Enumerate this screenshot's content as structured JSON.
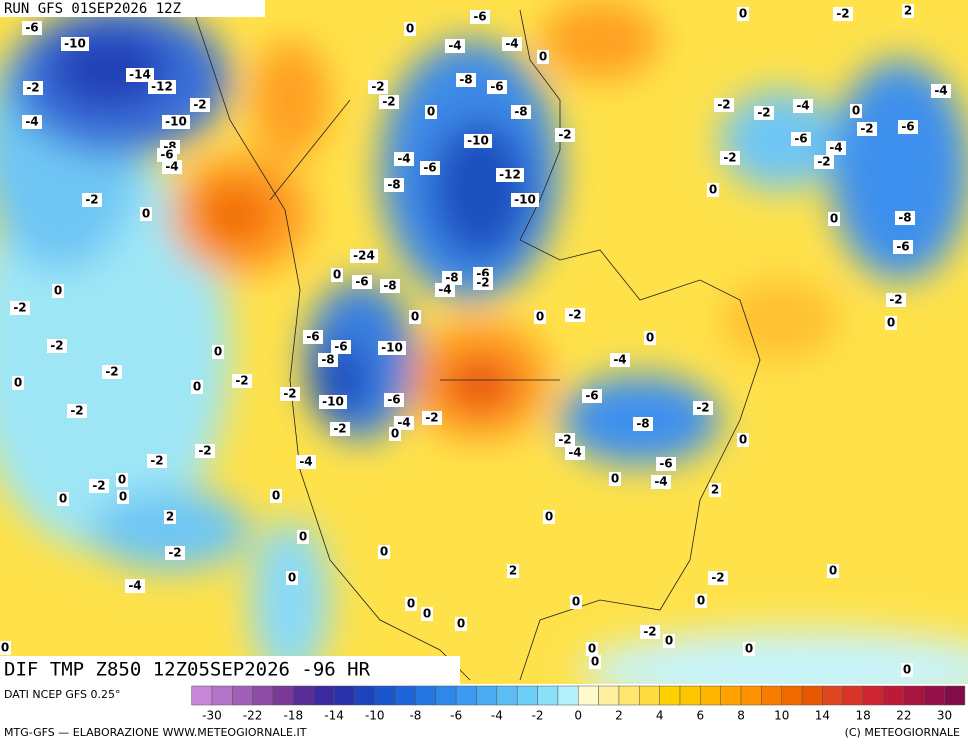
{
  "header": {
    "title": "RUN GFS 01SEP2026 12Z"
  },
  "map": {
    "title": "DIF TMP Z850 12Z05SEP2026 -96 HR",
    "labels": [
      -6,
      -10,
      -14,
      -12,
      -2,
      -4,
      -2,
      -10,
      -8,
      -6,
      -4,
      -2,
      0,
      -6,
      0,
      -4,
      -4,
      0,
      -8,
      -6,
      -2,
      -2,
      0,
      -8,
      -2,
      -10,
      -4,
      -6,
      -8,
      -12,
      -10,
      0,
      0,
      -2,
      2,
      -2,
      -2,
      -4,
      0,
      -2,
      -6,
      -4,
      -6,
      -4,
      -2,
      -2,
      0,
      -8,
      -6,
      -2,
      0,
      -24,
      0,
      -6,
      -8,
      -8,
      -6,
      -4,
      -2,
      0,
      0,
      -2,
      0,
      -4,
      -6,
      -8,
      -2,
      0,
      -2,
      -4,
      -6,
      -4,
      2,
      0,
      -6,
      -6,
      -8,
      -10,
      0,
      -2,
      0,
      -2,
      -10,
      -6,
      -4,
      -2,
      -2,
      0,
      -4,
      -2,
      0,
      -2,
      -2,
      0,
      -2,
      -2,
      -2,
      0,
      -2,
      0,
      0,
      2,
      -2,
      -4,
      0,
      0,
      0,
      0,
      2,
      0,
      -2,
      0,
      0,
      0,
      0,
      0,
      0,
      -2,
      0,
      0,
      0,
      0,
      0,
      0,
      0
    ]
  },
  "legend": {
    "source": "DATI NCEP GFS 0.25°",
    "ticks": [
      -30,
      -22,
      -18,
      -14,
      -10,
      -8,
      -6,
      -4,
      -2,
      0,
      2,
      4,
      6,
      8,
      10,
      14,
      18,
      22,
      30
    ],
    "colors": [
      "#c688d6",
      "#b374c8",
      "#a060b8",
      "#8c4ca6",
      "#783a96",
      "#5a2c98",
      "#3c2a9e",
      "#2a32aa",
      "#1e44bc",
      "#1a56cc",
      "#1c66da",
      "#2476e2",
      "#2e88ea",
      "#3c9af0",
      "#4cacf2",
      "#5cbef4",
      "#6ed0f6",
      "#8ae0f8",
      "#b4f0fc",
      "#fffacc",
      "#fff0a0",
      "#ffe670",
      "#ffdc40",
      "#ffd000",
      "#ffc400",
      "#ffb400",
      "#ffa200",
      "#ff9000",
      "#f87c00",
      "#f06a00",
      "#e85800",
      "#e04620",
      "#d83428",
      "#cc2430",
      "#bc1a38",
      "#a81440",
      "#961048",
      "#820c48"
    ]
  },
  "footer": {
    "credit": "MTG-GFS — ELABORAZIONE WWW.METEOGIORNALE.IT",
    "copyright": "(C) METEOGIORNALE"
  }
}
